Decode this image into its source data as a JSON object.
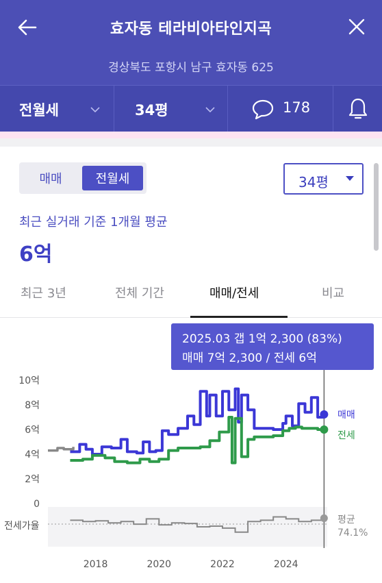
{
  "header": {
    "title": "효자동 테라비아타인지곡",
    "address": "경상북도 포항시 남구 효자동 625"
  },
  "filters": {
    "deal_type": "전월세",
    "size": "34평",
    "comments_count": "178"
  },
  "deal_toggle": {
    "options": [
      "매매",
      "전월세"
    ],
    "selected": "전월세"
  },
  "size_select": {
    "value": "34평"
  },
  "summary": {
    "label": "최근 실거래 기준 1개월 평균",
    "value": "6억"
  },
  "tabs": [
    "최근 3년",
    "전체 기간",
    "매매/전세",
    "비교"
  ],
  "active_tab": "매매/전세",
  "tooltip": {
    "line1": "2025.03  갭 1억 2,300 (83%)",
    "line2": "매매 7억 2,300 / 전세 6억"
  },
  "colors": {
    "header_bg": "#4c4fb5",
    "accent": "#3e40c4",
    "sale_line": "#3b37d6",
    "jeonse_line": "#2e9a4a",
    "ratio_line": "#888888"
  },
  "chart_data": {
    "type": "line",
    "title": "",
    "y_ticks": [
      "10억",
      "8억",
      "6억",
      "4억",
      "2억",
      "0"
    ],
    "ylim": [
      0,
      10
    ],
    "x_ticks": [
      "2018",
      "2020",
      "2022",
      "2024"
    ],
    "xlim": [
      2016.5,
      2025.3
    ],
    "series": [
      {
        "name": "매매",
        "x": [
          2017.2,
          2017.5,
          2017.7,
          2017.9,
          2018.2,
          2018.5,
          2018.8,
          2019.0,
          2019.3,
          2019.5,
          2019.7,
          2019.9,
          2020.1,
          2020.3,
          2020.6,
          2020.9,
          2021.1,
          2021.3,
          2021.5,
          2021.6,
          2021.8,
          2022.0,
          2022.2,
          2022.4,
          2022.5,
          2022.6,
          2022.8,
          2023.0,
          2023.3,
          2023.6,
          2023.9,
          2024.0,
          2024.2,
          2024.4,
          2024.6,
          2024.8,
          2025.0,
          2025.2
        ],
        "values": [
          4.2,
          4.8,
          4.4,
          4.0,
          4.6,
          4.5,
          5.2,
          4.2,
          4.1,
          5.0,
          4.2,
          4.3,
          5.9,
          5.6,
          6.1,
          7.1,
          6.4,
          9.1,
          7.1,
          8.8,
          7.1,
          9.1,
          7.6,
          9.3,
          6.6,
          8.8,
          7.6,
          6.1,
          6.1,
          6.0,
          6.5,
          7.1,
          6.3,
          8.1,
          7.4,
          8.6,
          7.0,
          7.23
        ]
      },
      {
        "name": "전세",
        "x": [
          2017.2,
          2017.6,
          2017.9,
          2018.3,
          2018.6,
          2019.0,
          2019.4,
          2019.7,
          2020.0,
          2020.3,
          2020.6,
          2021.0,
          2021.3,
          2021.6,
          2021.9,
          2022.2,
          2022.3,
          2022.4,
          2022.6,
          2022.8,
          2023.0,
          2023.3,
          2023.6,
          2023.9,
          2024.1,
          2024.3,
          2024.5,
          2024.8,
          2025.0,
          2025.2
        ],
        "values": [
          3.5,
          3.6,
          3.9,
          3.7,
          3.4,
          3.3,
          3.6,
          3.4,
          3.6,
          4.3,
          4.5,
          4.5,
          4.6,
          5.1,
          5.8,
          7.0,
          3.3,
          6.9,
          3.8,
          5.2,
          5.4,
          5.4,
          5.5,
          5.9,
          6.1,
          6.2,
          6.1,
          6.1,
          6.0,
          6.0
        ]
      },
      {
        "name": "평균",
        "x": [
          2016.5,
          2016.8,
          2017.0,
          2017.3
        ],
        "values": [
          4.3,
          4.5,
          4.4,
          4.6
        ]
      }
    ],
    "legend": [
      "매매",
      "전세"
    ],
    "ratio_panel": {
      "label": "전세가율",
      "avg_label": "평균",
      "avg_value": "74.1%",
      "x": [
        2017.2,
        2017.6,
        2018.0,
        2018.4,
        2018.8,
        2019.2,
        2019.6,
        2020.0,
        2020.4,
        2020.8,
        2021.2,
        2021.6,
        2022.0,
        2022.4,
        2022.8,
        2023.2,
        2023.6,
        2024.0,
        2024.4,
        2024.8,
        2025.2
      ],
      "values": [
        80,
        78,
        79,
        76,
        78,
        74,
        82,
        73,
        76,
        75,
        70,
        71,
        68,
        62,
        78,
        80,
        85,
        82,
        78,
        80,
        83
      ]
    },
    "cursor_x": 2025.2
  }
}
